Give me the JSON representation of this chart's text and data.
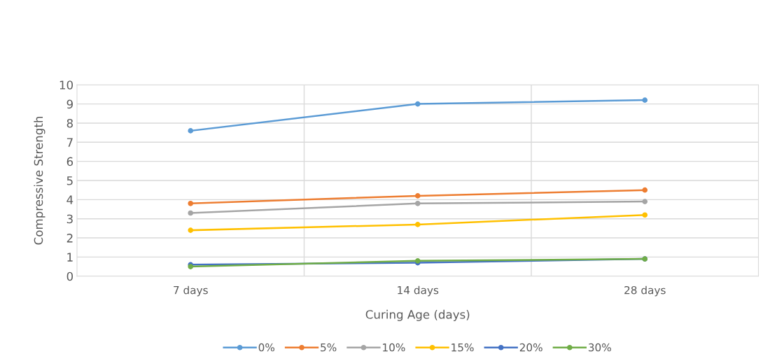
{
  "chart_data": {
    "type": "line",
    "xlabel": "Curing Age (days)",
    "ylabel": "Compressive Strength",
    "categories": [
      "7 days",
      "14 days",
      "28 days"
    ],
    "series": [
      {
        "name": "0%",
        "color": "#5b9bd5",
        "values": [
          7.6,
          9.0,
          9.2
        ]
      },
      {
        "name": "5%",
        "color": "#ed7d31",
        "values": [
          3.8,
          4.2,
          4.5
        ]
      },
      {
        "name": "10%",
        "color": "#a5a5a5",
        "values": [
          3.3,
          3.8,
          3.9
        ]
      },
      {
        "name": "15%",
        "color": "#ffc000",
        "values": [
          2.4,
          2.7,
          3.2
        ]
      },
      {
        "name": "20%",
        "color": "#4472c4",
        "values": [
          0.6,
          0.7,
          0.9
        ]
      },
      {
        "name": "30%",
        "color": "#70ad47",
        "values": [
          0.5,
          0.8,
          0.9
        ]
      }
    ],
    "ylim": [
      0,
      10
    ],
    "yticks": [
      0,
      1,
      2,
      3,
      4,
      5,
      6,
      7,
      8,
      9,
      10
    ],
    "grid": true,
    "legend": "bottom",
    "marker": "circle",
    "line_style": "solid"
  }
}
